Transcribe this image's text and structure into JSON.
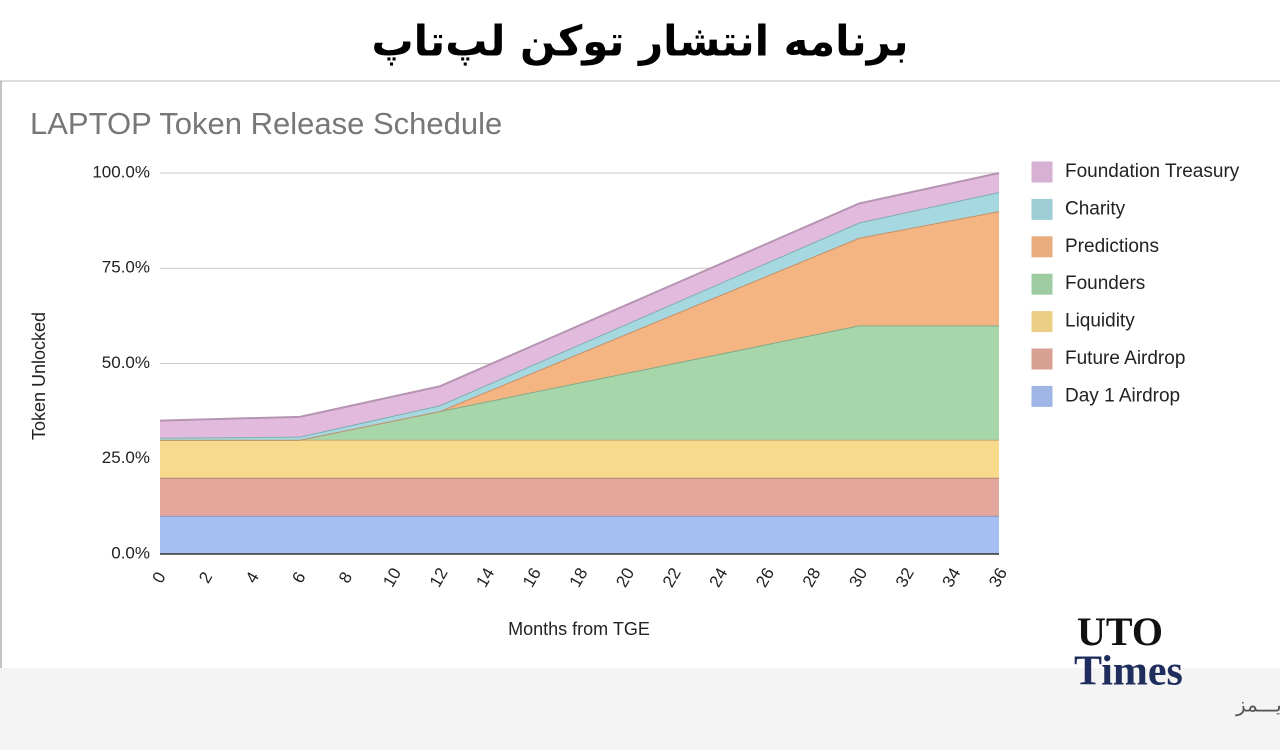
{
  "header": {
    "title": "برنامه انتشار توکن لپ‌تاپ"
  },
  "logo": {
    "line1": "UTO",
    "line2": "Times",
    "line3": "یوتـــو تایـــمز"
  },
  "chart_data": {
    "type": "stacked_area",
    "title": "LAPTOP Token Release Schedule",
    "x_label": "Months from TGE",
    "y_label": "Token Unlocked",
    "x": [
      0,
      6,
      12,
      30,
      36
    ],
    "xlim": [
      0,
      36
    ],
    "xticks": [
      0,
      2,
      4,
      6,
      8,
      10,
      12,
      14,
      16,
      18,
      20,
      22,
      24,
      26,
      28,
      30,
      32,
      34,
      36
    ],
    "ylim": [
      0,
      100
    ],
    "yticks": [
      {
        "value": 0,
        "label": "0.0%"
      },
      {
        "value": 25,
        "label": "25.0%"
      },
      {
        "value": 50,
        "label": "50.0%"
      },
      {
        "value": 75,
        "label": "75.0%"
      },
      {
        "value": 100,
        "label": "100.0%"
      }
    ],
    "grid": true,
    "legend": "right",
    "series": [
      {
        "name": "Day 1 Airdrop",
        "color": "#a6bff2",
        "values": [
          10,
          10,
          10,
          10,
          10
        ]
      },
      {
        "name": "Future Airdrop",
        "color": "#e3a79b",
        "values": [
          10,
          10,
          10,
          10,
          10
        ]
      },
      {
        "name": "Liquidity",
        "color": "#f7da8c",
        "values": [
          10,
          10,
          10,
          10,
          10
        ]
      },
      {
        "name": "Founders",
        "color": "#a6d6a9",
        "values": [
          0,
          0,
          7.5,
          30,
          30
        ]
      },
      {
        "name": "Predictions",
        "color": "#f5b583",
        "values": [
          0,
          0,
          0,
          23,
          30
        ]
      },
      {
        "name": "Charity",
        "color": "#a5d8e0",
        "values": [
          0.5,
          0.8,
          1.5,
          4,
          5
        ]
      },
      {
        "name": "Foundation Treasury",
        "color": "#e2bade",
        "values": [
          4.5,
          5.2,
          5,
          5,
          5
        ]
      }
    ]
  }
}
